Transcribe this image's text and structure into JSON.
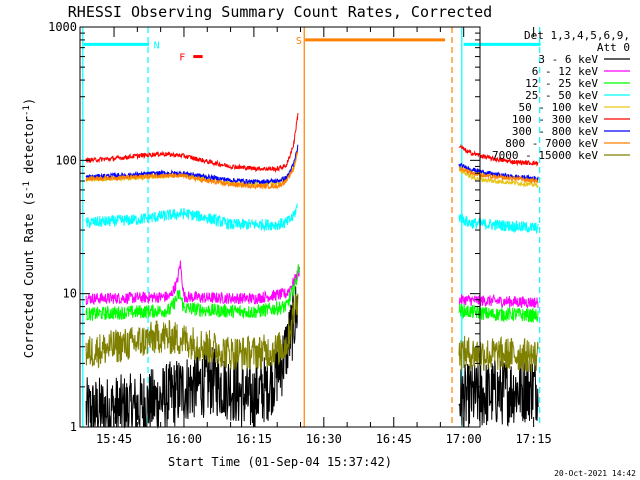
{
  "chart_data": {
    "type": "line",
    "title": "RHESSI Observing Summary Count Rates, Corrected",
    "xlabel": "Start Time (01-Sep-04 15:37:42)",
    "ylabel_main": "Corrected Count Rate (s",
    "ylabel_sup1": "-1",
    "ylabel_mid": " detector",
    "ylabel_sup2": "-1",
    "ylabel_end": ")",
    "y_scale": "log",
    "ylim": [
      1,
      1000
    ],
    "xlim_min": [
      37.7,
      123.5
    ],
    "x_ticks": [
      {
        "value": 45,
        "label": "15:45"
      },
      {
        "value": 60,
        "label": "16:00"
      },
      {
        "value": 75,
        "label": "16:15"
      },
      {
        "value": 90,
        "label": "16:30"
      },
      {
        "value": 105,
        "label": "16:45"
      },
      {
        "value": 120,
        "label": "17:00"
      },
      {
        "value": 135,
        "label": "17:15"
      }
    ],
    "y_ticks": [
      {
        "value": 1,
        "label": "1"
      },
      {
        "value": 10,
        "label": "10"
      },
      {
        "value": 100,
        "label": "100"
      },
      {
        "value": 1000,
        "label": "1000"
      }
    ],
    "legend_header": [
      "Det 1,3,4,5,6,9,",
      "Att 0"
    ],
    "legend_position": "right",
    "series": [
      {
        "name": "3 - 6 keV",
        "color": "#000000",
        "noise": 0.6,
        "points": [
          [
            39,
            1.3
          ],
          [
            50,
            1.4
          ],
          [
            55,
            1.6
          ],
          [
            61,
            2.0
          ],
          [
            66,
            2.2
          ],
          [
            70,
            2.0
          ],
          [
            74,
            1.6
          ],
          [
            78,
            2.0
          ],
          [
            81,
            3.0
          ],
          [
            83.5,
            6.0
          ],
          [
            84.5,
            8.5
          ]
        ],
        "points2": [
          [
            119,
            1.6
          ],
          [
            126,
            1.8
          ],
          [
            131,
            1.9
          ],
          [
            136,
            2.0
          ]
        ]
      },
      {
        "name": "6 - 12 keV",
        "color": "#ff00ff",
        "noise": 0.1,
        "points": [
          [
            39,
            9.2
          ],
          [
            50,
            9.3
          ],
          [
            57,
            9.5
          ],
          [
            58.5,
            12
          ],
          [
            59.2,
            17
          ],
          [
            60,
            9.5
          ],
          [
            65,
            9.3
          ],
          [
            75,
            9.2
          ],
          [
            82,
            10
          ],
          [
            84,
            13
          ],
          [
            84.8,
            15
          ]
        ],
        "points2": [
          [
            119,
            9.0
          ],
          [
            126,
            8.8
          ],
          [
            131,
            8.7
          ],
          [
            136,
            8.6
          ]
        ]
      },
      {
        "name": "12 - 25 keV",
        "color": "#00ff00",
        "noise": 0.12,
        "points": [
          [
            39,
            7.0
          ],
          [
            50,
            7.3
          ],
          [
            57,
            7.5
          ],
          [
            59,
            10
          ],
          [
            60,
            7.8
          ],
          [
            65,
            7.5
          ],
          [
            75,
            7.3
          ],
          [
            82,
            8.0
          ],
          [
            84,
            12
          ],
          [
            84.8,
            17
          ]
        ],
        "points2": [
          [
            119,
            7.5
          ],
          [
            126,
            7.0
          ],
          [
            131,
            7.0
          ],
          [
            136,
            6.8
          ]
        ]
      },
      {
        "name": "25 - 50 keV",
        "color": "#00ffff",
        "noise": 0.1,
        "points": [
          [
            39,
            34
          ],
          [
            45,
            35
          ],
          [
            50,
            36
          ],
          [
            55,
            38
          ],
          [
            60,
            40
          ],
          [
            65,
            37
          ],
          [
            70,
            33
          ],
          [
            75,
            33
          ],
          [
            80,
            33
          ],
          [
            82,
            34
          ],
          [
            83.5,
            38
          ],
          [
            84.3,
            45
          ]
        ],
        "points2": [
          [
            119,
            38
          ],
          [
            121,
            34
          ],
          [
            126,
            33
          ],
          [
            131,
            32
          ],
          [
            136,
            31
          ]
        ]
      },
      {
        "name": "50 - 100 keV",
        "color": "#e6c619",
        "noise": 0.04,
        "points": [
          [
            39,
            72
          ],
          [
            45,
            73
          ],
          [
            50,
            74
          ],
          [
            55,
            76
          ],
          [
            60,
            78
          ],
          [
            65,
            72
          ],
          [
            70,
            67
          ],
          [
            75,
            66
          ],
          [
            80,
            68
          ],
          [
            82,
            73
          ],
          [
            83.5,
            88
          ],
          [
            84.5,
            125
          ]
        ],
        "points2": [
          [
            119,
            85
          ],
          [
            122,
            74
          ],
          [
            126,
            70
          ],
          [
            131,
            68
          ],
          [
            136,
            65
          ]
        ]
      },
      {
        "name": "100 - 300 keV",
        "color": "#ff0000",
        "noise": 0.04,
        "points": [
          [
            39,
            100
          ],
          [
            45,
            103
          ],
          [
            50,
            108
          ],
          [
            55,
            112
          ],
          [
            60,
            108
          ],
          [
            65,
            98
          ],
          [
            70,
            90
          ],
          [
            75,
            87
          ],
          [
            80,
            86
          ],
          [
            82,
            92
          ],
          [
            83.5,
            130
          ],
          [
            84.5,
            230
          ]
        ],
        "points2": [
          [
            119,
            128
          ],
          [
            121,
            115
          ],
          [
            126,
            103
          ],
          [
            131,
            97
          ],
          [
            136,
            95
          ]
        ]
      },
      {
        "name": "300 - 800 keV",
        "color": "#0000ff",
        "noise": 0.04,
        "points": [
          [
            39,
            75
          ],
          [
            45,
            77
          ],
          [
            50,
            78
          ],
          [
            55,
            80
          ],
          [
            60,
            80
          ],
          [
            65,
            75
          ],
          [
            70,
            71
          ],
          [
            75,
            69
          ],
          [
            80,
            70
          ],
          [
            82,
            74
          ],
          [
            83.5,
            93
          ],
          [
            84.5,
            130
          ]
        ],
        "points2": [
          [
            119,
            92
          ],
          [
            122,
            85
          ],
          [
            126,
            79
          ],
          [
            131,
            75
          ],
          [
            136,
            73
          ]
        ]
      },
      {
        "name": "800 - 7000 keV",
        "color": "#ff8000",
        "noise": 0.04,
        "points": [
          [
            39,
            73
          ],
          [
            45,
            74
          ],
          [
            50,
            75
          ],
          [
            55,
            77
          ],
          [
            60,
            76
          ],
          [
            65,
            70
          ],
          [
            70,
            66
          ],
          [
            75,
            64
          ],
          [
            80,
            64
          ],
          [
            82,
            70
          ],
          [
            83.5,
            86
          ],
          [
            84.5,
            120
          ]
        ],
        "points2": [
          [
            119,
            88
          ],
          [
            122,
            80
          ],
          [
            126,
            75
          ],
          [
            131,
            73
          ],
          [
            136,
            70
          ]
        ]
      },
      {
        "name": "7000 - 15000 keV",
        "color": "#808000",
        "noise": 0.3,
        "points": [
          [
            39,
            3.6
          ],
          [
            45,
            4.0
          ],
          [
            50,
            4.3
          ],
          [
            55,
            4.8
          ],
          [
            60,
            4.5
          ],
          [
            65,
            4.0
          ],
          [
            70,
            3.6
          ],
          [
            75,
            3.6
          ],
          [
            80,
            3.8
          ],
          [
            82,
            4.2
          ],
          [
            83.5,
            7
          ],
          [
            84.5,
            10
          ]
        ],
        "points2": [
          [
            119,
            3.6
          ],
          [
            126,
            3.5
          ],
          [
            131,
            3.5
          ],
          [
            136,
            3.4
          ]
        ]
      }
    ],
    "flag_bars": [
      {
        "label": "N",
        "color": "#00ffff",
        "y": 740,
        "x_start": 38.5,
        "x_end": 52.5,
        "label_x": 53.5
      },
      {
        "label": "",
        "color": "#00ffff",
        "y": 740,
        "x_start": 120,
        "x_end": 136.5,
        "label_x": 0
      },
      {
        "label": "F",
        "color": "#ff0000",
        "y": 600,
        "x_start": 62,
        "x_end": 64,
        "label_x": 59
      },
      {
        "label": "S",
        "color": "#ff8000",
        "y": 800,
        "x_start": 86,
        "x_end": 116,
        "label_x": 84
      }
    ],
    "vlines": [
      {
        "x": 38.3,
        "color": "#00ffff",
        "style": "solid"
      },
      {
        "x": 52.3,
        "color": "#00ffff",
        "style": "dashed"
      },
      {
        "x": 85.8,
        "color": "#ff8000",
        "style": "solid"
      },
      {
        "x": 117.5,
        "color": "#ff8000",
        "style": "dashed"
      },
      {
        "x": 119.6,
        "color": "#00ffff",
        "style": "solid"
      },
      {
        "x": 136.3,
        "color": "#00ffff",
        "style": "dashed"
      }
    ],
    "gap_region": [
      85.8,
      119.6
    ],
    "timestamp": "20-Oct-2021 14:42"
  }
}
